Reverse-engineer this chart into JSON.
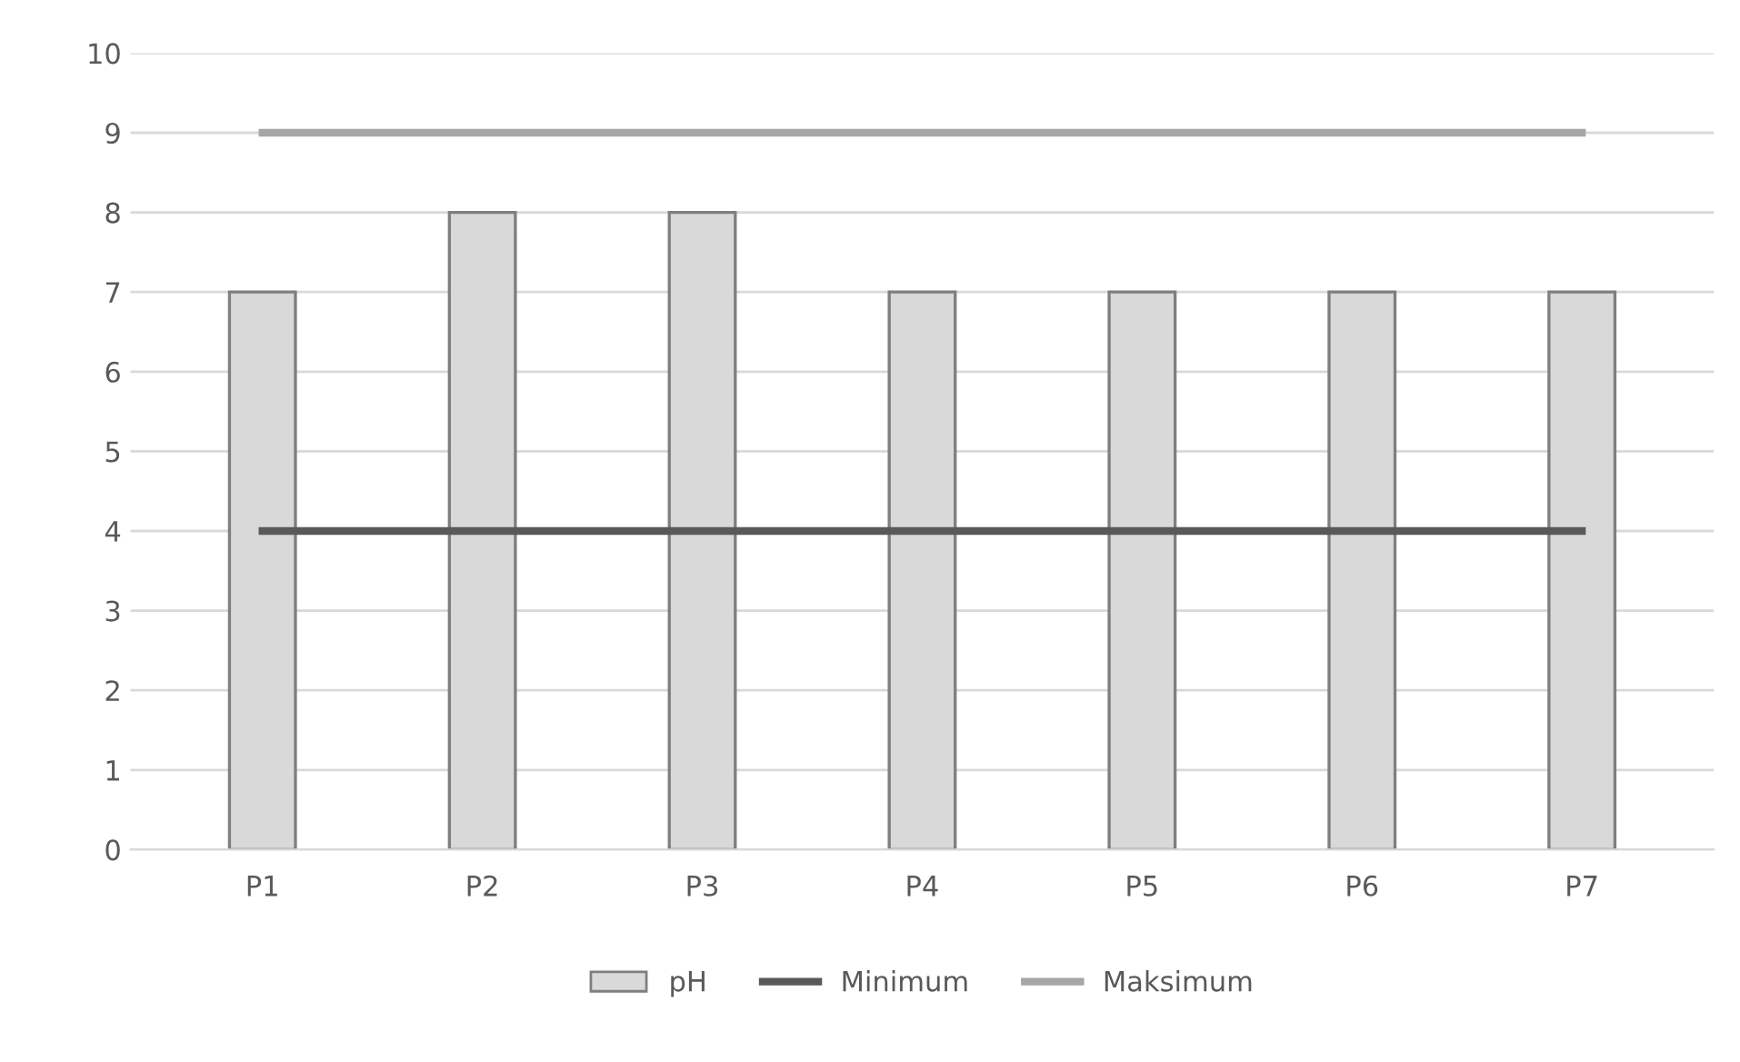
{
  "chart_data": {
    "type": "bar",
    "categories": [
      "P1",
      "P2",
      "P3",
      "P4",
      "P5",
      "P6",
      "P7"
    ],
    "series": [
      {
        "name": "pH",
        "color": "#d9d9d9",
        "values": [
          7,
          8,
          8,
          7,
          7,
          7,
          7
        ]
      },
      {
        "name": "Minimum",
        "type": "line",
        "color": "#595959",
        "values": [
          4,
          4,
          4,
          4,
          4,
          4,
          4
        ]
      },
      {
        "name": "Maksimum",
        "type": "line",
        "color": "#a6a6a6",
        "values": [
          9,
          9,
          9,
          9,
          9,
          9,
          9
        ]
      }
    ],
    "ylim": [
      0,
      10
    ],
    "yticks": [
      0,
      1,
      2,
      3,
      4,
      5,
      6,
      7,
      8,
      9,
      10
    ],
    "grid": "y",
    "legend": "bottom",
    "marker": "none",
    "line_style": "solid"
  }
}
